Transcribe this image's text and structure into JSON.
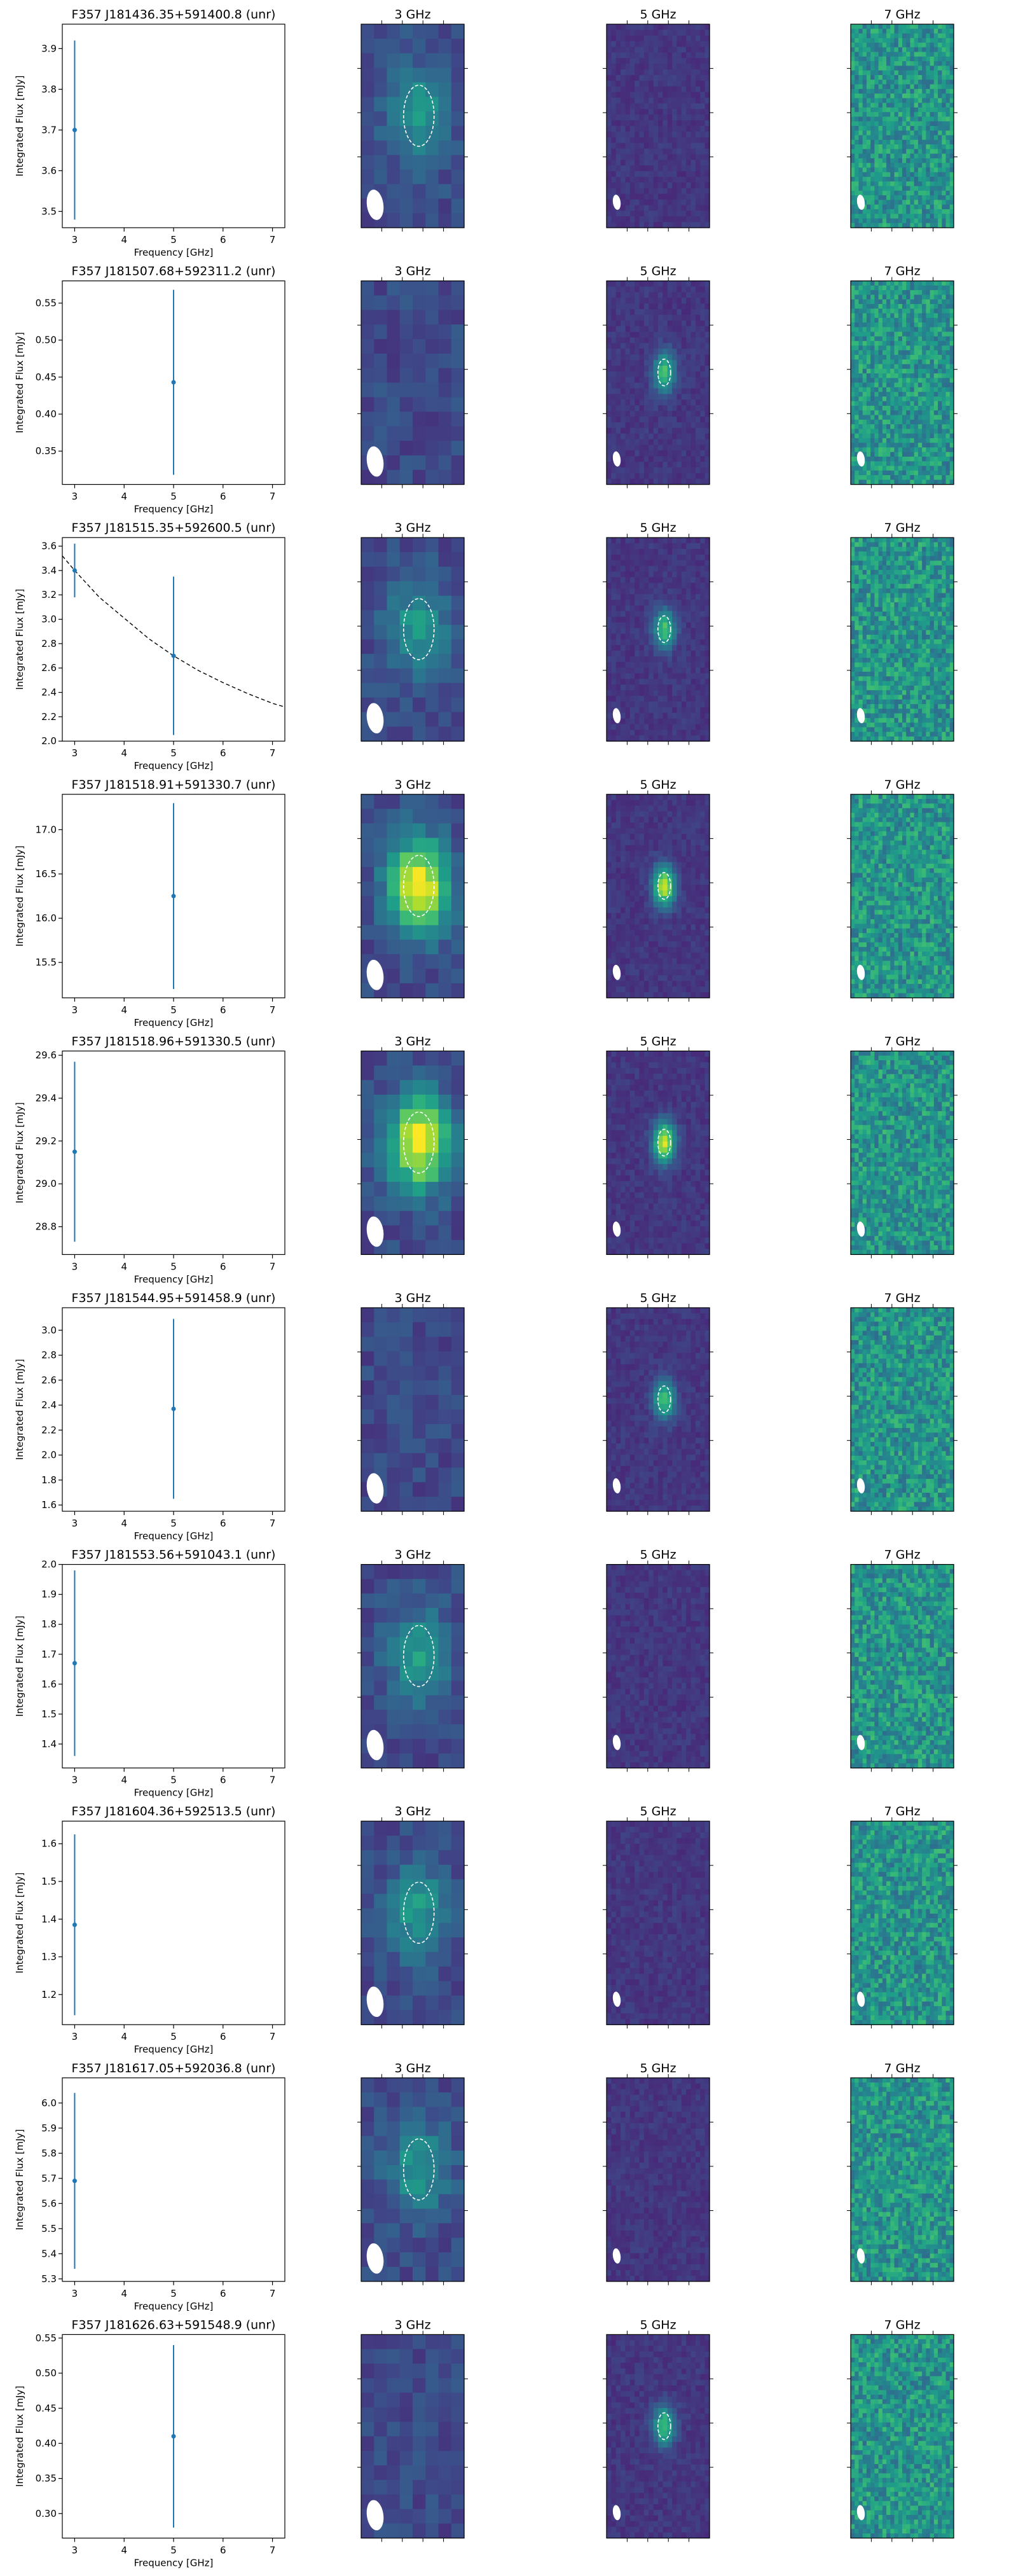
{
  "figure": {
    "panel_titles": [
      "3 GHz",
      "5 GHz",
      "7 GHz"
    ],
    "xlabel": "Frequency [GHz]",
    "ylabel": "Integrated Flux [mJy]",
    "x_ticks": [
      3,
      4,
      5,
      6,
      7
    ],
    "xlim": [
      2.75,
      7.25
    ]
  },
  "chart_data": [
    {
      "type": "scatter",
      "title": "F357 J181436.35+591400.8 (unr)",
      "x": [
        3
      ],
      "y": [
        3.7
      ],
      "yerr": [
        0.22
      ],
      "ylim": [
        3.46,
        3.96
      ],
      "yticks": [
        3.5,
        3.6,
        3.7,
        3.8,
        3.9
      ],
      "detected_bands": [
        "3 GHz"
      ]
    },
    {
      "type": "scatter",
      "title": "F357 J181507.68+592311.2 (unr)",
      "x": [
        5
      ],
      "y": [
        0.443
      ],
      "yerr": [
        0.125
      ],
      "ylim": [
        0.305,
        0.58
      ],
      "yticks": [
        0.35,
        0.4,
        0.45,
        0.5,
        0.55
      ],
      "detected_bands": [
        "5 GHz"
      ]
    },
    {
      "type": "scatter",
      "title": "F357 J181515.35+592600.5 (unr)",
      "x": [
        3,
        5
      ],
      "y": [
        3.4,
        2.7
      ],
      "yerr": [
        0.22,
        0.65
      ],
      "ylim": [
        2.0,
        3.67
      ],
      "yticks": [
        2.0,
        2.2,
        2.4,
        2.6,
        2.8,
        3.0,
        3.2,
        3.4,
        3.6
      ],
      "fit_line": {
        "style": "dashed",
        "x": [
          2.75,
          3.0,
          3.5,
          4.0,
          4.5,
          5.0,
          5.5,
          6.0,
          6.5,
          7.0,
          7.25
        ],
        "y": [
          3.52,
          3.4,
          3.18,
          3.01,
          2.84,
          2.7,
          2.58,
          2.48,
          2.39,
          2.31,
          2.28
        ]
      },
      "detected_bands": [
        "3 GHz",
        "5 GHz"
      ]
    },
    {
      "type": "scatter",
      "title": "F357 J181518.91+591330.7 (unr)",
      "x": [
        5
      ],
      "y": [
        16.25
      ],
      "yerr": [
        1.05
      ],
      "ylim": [
        15.1,
        17.4
      ],
      "yticks": [
        15.5,
        16.0,
        16.5,
        17.0
      ],
      "detected_bands": [
        "3 GHz",
        "5 GHz"
      ]
    },
    {
      "type": "scatter",
      "title": "F357 J181518.96+591330.5 (unr)",
      "x": [
        3
      ],
      "y": [
        29.15
      ],
      "yerr": [
        0.42
      ],
      "ylim": [
        28.67,
        29.62
      ],
      "yticks": [
        28.8,
        29.0,
        29.2,
        29.4,
        29.6
      ],
      "detected_bands": [
        "3 GHz",
        "5 GHz"
      ]
    },
    {
      "type": "scatter",
      "title": "F357 J181544.95+591458.9 (unr)",
      "x": [
        5
      ],
      "y": [
        2.37
      ],
      "yerr": [
        0.72
      ],
      "ylim": [
        1.55,
        3.18
      ],
      "yticks": [
        1.6,
        1.8,
        2.0,
        2.2,
        2.4,
        2.6,
        2.8,
        3.0
      ],
      "detected_bands": [
        "5 GHz"
      ]
    },
    {
      "type": "scatter",
      "title": "F357 J181553.56+591043.1 (unr)",
      "x": [
        3
      ],
      "y": [
        1.67
      ],
      "yerr": [
        0.31
      ],
      "ylim": [
        1.32,
        2.0
      ],
      "yticks": [
        1.4,
        1.5,
        1.6,
        1.7,
        1.8,
        1.9,
        2.0
      ],
      "detected_bands": [
        "3 GHz"
      ]
    },
    {
      "type": "scatter",
      "title": "F357 J181604.36+592513.5 (unr)",
      "x": [
        3
      ],
      "y": [
        1.385
      ],
      "yerr": [
        0.24
      ],
      "ylim": [
        1.12,
        1.66
      ],
      "yticks": [
        1.2,
        1.3,
        1.4,
        1.5,
        1.6
      ],
      "detected_bands": [
        "3 GHz"
      ]
    },
    {
      "type": "scatter",
      "title": "F357 J181617.05+592036.8 (unr)",
      "x": [
        3
      ],
      "y": [
        5.69
      ],
      "yerr": [
        0.35
      ],
      "ylim": [
        5.29,
        6.1
      ],
      "yticks": [
        5.3,
        5.4,
        5.5,
        5.6,
        5.7,
        5.8,
        5.9,
        6.0
      ],
      "detected_bands": [
        "3 GHz"
      ]
    },
    {
      "type": "scatter",
      "title": "F357 J181626.63+591548.9 (unr)",
      "x": [
        5
      ],
      "y": [
        0.41
      ],
      "yerr": [
        0.13
      ],
      "ylim": [
        0.265,
        0.555
      ],
      "yticks": [
        0.3,
        0.35,
        0.4,
        0.45,
        0.5,
        0.55
      ],
      "detected_bands": [
        "5 GHz"
      ]
    }
  ]
}
